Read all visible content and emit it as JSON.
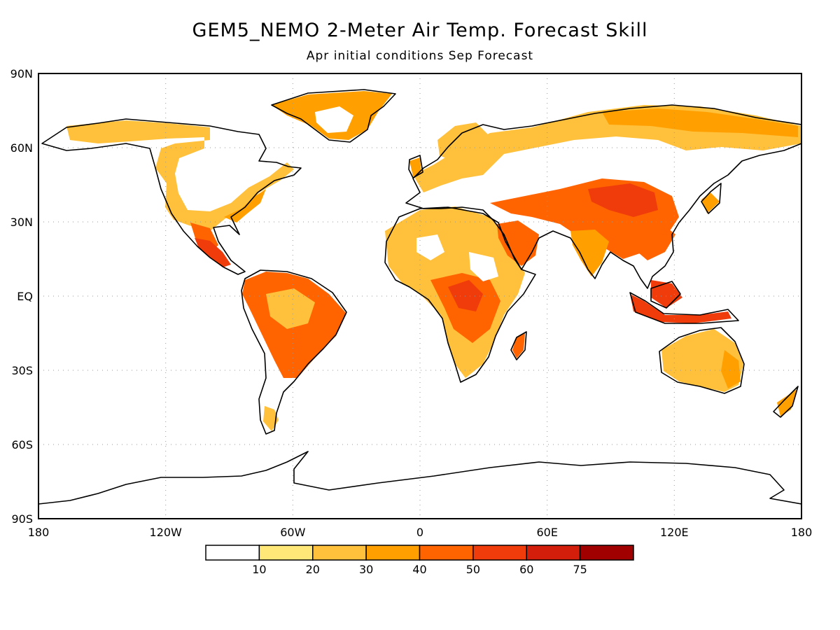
{
  "header": {
    "title": "GEM5_NEMO 2-Meter Air Temp. Forecast Skill",
    "subtitle": "Apr initial conditions  Sep Forecast"
  },
  "map": {
    "projection": "equirectangular",
    "lon_range": [
      -180,
      180
    ],
    "lat_range": [
      -90,
      90
    ],
    "grid": true,
    "lon_ticks": [
      "180",
      "120W",
      "60W",
      "0",
      "60E",
      "120E",
      "180"
    ],
    "lat_ticks": [
      "90N",
      "60N",
      "30N",
      "EQ",
      "30S",
      "60S",
      "90S"
    ],
    "colorbar": {
      "labels": [
        "10",
        "20",
        "30",
        "40",
        "50",
        "60",
        "75"
      ],
      "colors": [
        "#ffffff",
        "#ffe878",
        "#ffc03c",
        "#ffa000",
        "#ff6400",
        "#f03c0a",
        "#d21e0a",
        "#a00000"
      ]
    }
  }
}
